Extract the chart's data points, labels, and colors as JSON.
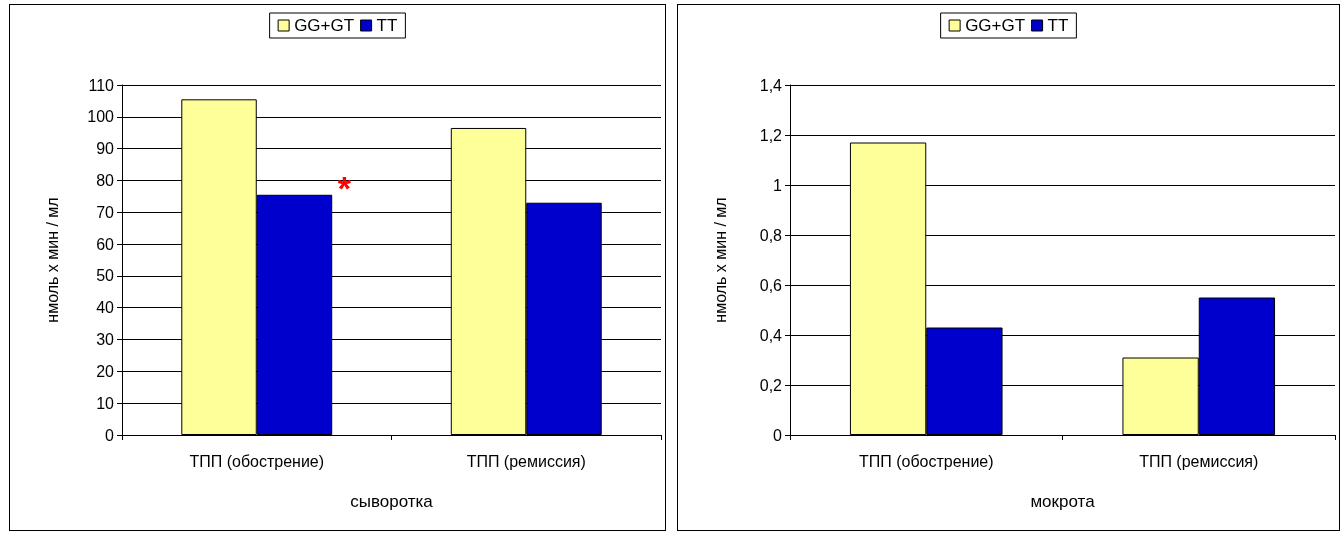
{
  "chart_data": [
    {
      "type": "bar",
      "xlabel": "сыворотка",
      "ylabel": "нмоль х мин / мл",
      "categories": [
        "ТПП (обострение)",
        "ТПП (ремиссия)"
      ],
      "series": [
        {
          "name": "GG+GT",
          "color": "#ffff99",
          "values": [
            105.5,
            96.5
          ]
        },
        {
          "name": "TT",
          "color": "#0000cc",
          "values": [
            75.5,
            73
          ]
        }
      ],
      "ylim": [
        0,
        110
      ],
      "yticks": [
        0,
        10,
        20,
        30,
        40,
        50,
        60,
        70,
        80,
        90,
        100,
        110
      ],
      "grid": "y",
      "legend": "top",
      "annotations": [
        {
          "text": "*",
          "x": "ТПП (обострение)",
          "y": 80
        }
      ]
    },
    {
      "type": "bar",
      "xlabel": "мокрота",
      "ylabel": "нмоль х мин / мл",
      "categories": [
        "ТПП (обострение)",
        "ТПП (ремиссия)"
      ],
      "series": [
        {
          "name": "GG+GT",
          "color": "#ffff99",
          "values": [
            1.17,
            0.31
          ]
        },
        {
          "name": "TT",
          "color": "#0000cc",
          "values": [
            0.43,
            0.55
          ]
        }
      ],
      "ylim": [
        0,
        1.4
      ],
      "yticks": [
        0,
        {
          "value": 0.2,
          "label": "0,2"
        },
        {
          "value": 0.4,
          "label": "0,4"
        },
        {
          "value": 0.6,
          "label": "0,6"
        },
        {
          "value": 0.8,
          "label": "0,8"
        },
        1,
        {
          "value": 1.2,
          "label": "1,2"
        },
        {
          "value": 1.4,
          "label": "1,4"
        }
      ],
      "grid": "y",
      "legend": "top"
    }
  ]
}
